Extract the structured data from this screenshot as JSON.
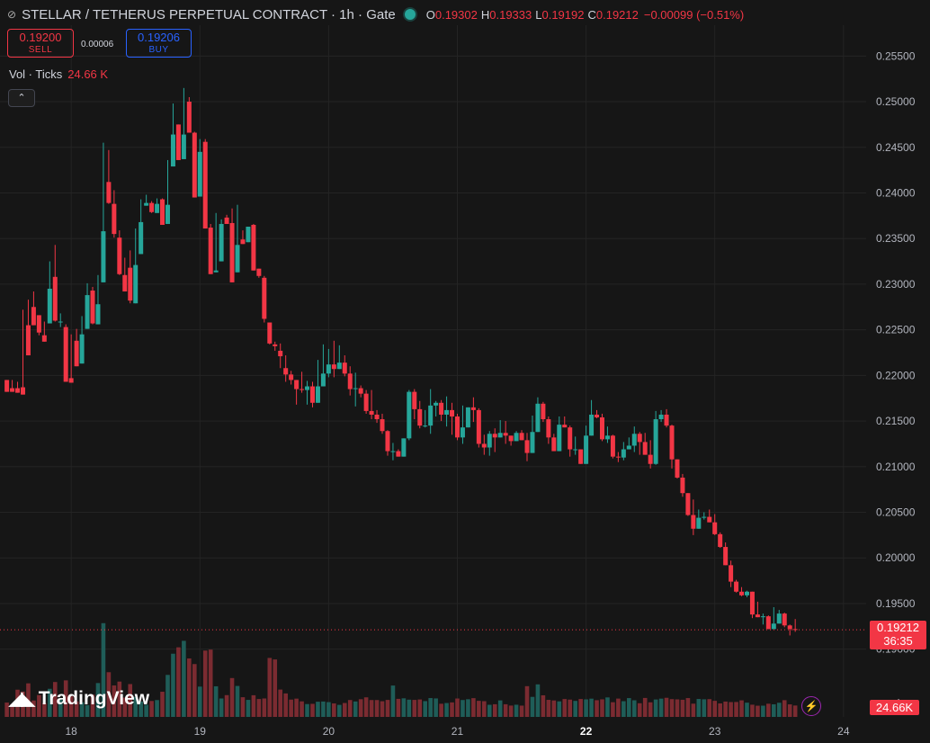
{
  "header": {
    "symbol": "STELLAR / TETHERUS PERPETUAL CONTRACT · 1h · Gate",
    "o_label": "O",
    "o_value": "0.19302",
    "h_label": "H",
    "h_value": "0.19333",
    "l_label": "L",
    "l_value": "0.19192",
    "c_label": "C",
    "c_value": "0.19212",
    "change": "−0.00099 (−0.51%)"
  },
  "trade": {
    "sell_price": "0.19200",
    "sell_label": "SELL",
    "spread": "0.00006",
    "buy_price": "0.19206",
    "buy_label": "BUY"
  },
  "volume_legend": {
    "label": "Vol · Ticks",
    "value": "24.66 K"
  },
  "collapse_icon": "chevron-up",
  "branding": {
    "logo_text": "TradingView"
  },
  "price_tag": {
    "price": "0.19212",
    "countdown": "36:35"
  },
  "volume_tag": "24.66K",
  "colors": {
    "up": "#26a69a",
    "down": "#f23645",
    "background": "#161616",
    "grid": "#242424"
  },
  "chart_data": {
    "type": "candlestick",
    "y_ticks": [
      "0.25500",
      "0.25000",
      "0.24500",
      "0.24000",
      "0.23500",
      "0.23000",
      "0.22500",
      "0.22000",
      "0.21500",
      "0.21000",
      "0.20500",
      "0.20000",
      "0.19500",
      "0.19000"
    ],
    "y_tick_values": [
      0.255,
      0.25,
      0.245,
      0.24,
      0.235,
      0.23,
      0.225,
      0.22,
      0.215,
      0.21,
      0.205,
      0.2,
      0.195,
      0.19
    ],
    "ylim": [
      0.1877,
      0.2572
    ],
    "x_ticks": [
      "18",
      "19",
      "20",
      "21",
      "22",
      "23",
      "24"
    ],
    "x_tick_hours": [
      12,
      36,
      60,
      84,
      108,
      132,
      156
    ],
    "x_tick_bold": [
      false,
      false,
      false,
      false,
      true,
      false,
      false
    ],
    "first_candle": "17th, 00:00",
    "last_price": 0.19212,
    "volume_ymax": 1.0,
    "candles": [
      [
        0.2195,
        0.2182,
        0.2192,
        0.2186,
        0.0939
      ],
      [
        0.2186,
        0.2182,
        0.2195,
        0.2184,
        0.082
      ],
      [
        0.2186,
        0.2181,
        0.2193,
        0.2187,
        0.178
      ],
      [
        0.2187,
        0.2179,
        0.2272,
        0.2255,
        0.1658
      ],
      [
        0.2255,
        0.2222,
        0.2283,
        0.2275,
        0.2195
      ],
      [
        0.2275,
        0.2255,
        0.2292,
        0.2266,
        0.1073
      ],
      [
        0.2266,
        0.2247,
        0.2263,
        0.2244,
        0.1429
      ],
      [
        0.2244,
        0.2237,
        0.2259,
        0.2257,
        0.0899
      ],
      [
        0.2257,
        0.2295,
        0.2325,
        0.2308,
        0.1838
      ],
      [
        0.2308,
        0.226,
        0.2343,
        0.2259,
        0.2283
      ],
      [
        0.2259,
        0.2259,
        0.2268,
        0.2253,
        0.113
      ],
      [
        0.2253,
        0.2193,
        0.2256,
        0.2197,
        0.2391
      ],
      [
        0.2197,
        0.2192,
        0.2245,
        0.2238,
        0.1349
      ],
      [
        0.2238,
        0.221,
        0.2251,
        0.2213,
        0.1014
      ],
      [
        0.2213,
        0.2245,
        0.2265,
        0.2251,
        0.0958
      ],
      [
        0.2251,
        0.2288,
        0.2301,
        0.2293,
        0.0771
      ],
      [
        0.2293,
        0.2257,
        0.2297,
        0.2256,
        0.1458
      ],
      [
        0.2256,
        0.2278,
        0.231,
        0.2302,
        0.2214
      ],
      [
        0.2302,
        0.2358,
        0.2455,
        0.2412,
        0.6131
      ],
      [
        0.2412,
        0.2389,
        0.2447,
        0.2388,
        0.2924
      ],
      [
        0.2388,
        0.2355,
        0.2403,
        0.2351,
        0.2057
      ],
      [
        0.2351,
        0.2311,
        0.2359,
        0.231,
        0.2311
      ],
      [
        0.231,
        0.2292,
        0.2329,
        0.2318,
        0.1263
      ],
      [
        0.2318,
        0.2282,
        0.2337,
        0.2279,
        0.2148
      ],
      [
        0.2279,
        0.2321,
        0.2361,
        0.2333,
        0.1304
      ],
      [
        0.2333,
        0.2368,
        0.2393,
        0.2386,
        0.1006
      ],
      [
        0.2386,
        0.2389,
        0.2398,
        0.2389,
        0.0798
      ],
      [
        0.2389,
        0.2379,
        0.2391,
        0.2378,
        0.1043
      ],
      [
        0.2378,
        0.2388,
        0.2394,
        0.2393,
        0.1102
      ],
      [
        0.2393,
        0.2365,
        0.2394,
        0.2366,
        0.1646
      ],
      [
        0.2366,
        0.2387,
        0.2436,
        0.2429,
        0.2747
      ],
      [
        0.2429,
        0.2464,
        0.2498,
        0.2475,
        0.4133
      ],
      [
        0.2475,
        0.2436,
        0.2475,
        0.2437,
        0.4551
      ],
      [
        0.2437,
        0.2464,
        0.2515,
        0.25,
        0.4976
      ],
      [
        0.25,
        0.2466,
        0.2505,
        0.2466,
        0.3824
      ],
      [
        0.2466,
        0.2395,
        0.2467,
        0.2396,
        0.3456
      ],
      [
        0.2396,
        0.2445,
        0.2459,
        0.2456,
        0.1982
      ],
      [
        0.2456,
        0.2361,
        0.2459,
        0.2362,
        0.4338
      ],
      [
        0.2362,
        0.2311,
        0.2366,
        0.2313,
        0.4402
      ],
      [
        0.2313,
        0.2315,
        0.2378,
        0.2325,
        0.2002
      ],
      [
        0.2325,
        0.2366,
        0.2371,
        0.2373,
        0.1207
      ],
      [
        0.2373,
        0.2366,
        0.2376,
        0.2367,
        0.1426
      ],
      [
        0.2367,
        0.2302,
        0.2383,
        0.2313,
        0.2541
      ],
      [
        0.2313,
        0.2343,
        0.2387,
        0.2349,
        0.2024
      ],
      [
        0.2349,
        0.2344,
        0.2359,
        0.2346,
        0.1288
      ],
      [
        0.2346,
        0.2363,
        0.2362,
        0.2365,
        0.1114
      ],
      [
        0.2365,
        0.2315,
        0.2366,
        0.2317,
        0.1417
      ],
      [
        0.2317,
        0.2309,
        0.2313,
        0.2307,
        0.1172
      ],
      [
        0.2307,
        0.2262,
        0.2309,
        0.2258,
        0.1207
      ],
      [
        0.2258,
        0.2235,
        0.2258,
        0.2234,
        0.3857
      ],
      [
        0.2234,
        0.2232,
        0.2237,
        0.2227,
        0.3759
      ],
      [
        0.2227,
        0.2221,
        0.2235,
        0.2208,
        0.1788
      ],
      [
        0.2208,
        0.2201,
        0.2222,
        0.2193,
        0.1535
      ],
      [
        0.2201,
        0.2195,
        0.2205,
        0.219,
        0.1133
      ],
      [
        0.2195,
        0.2185,
        0.219,
        0.2168,
        0.1196
      ],
      [
        0.2185,
        0.2184,
        0.2204,
        0.2181,
        0.1018
      ],
      [
        0.2184,
        0.2188,
        0.2194,
        0.2168,
        0.0841
      ],
      [
        0.2188,
        0.217,
        0.2193,
        0.2165,
        0.0855
      ],
      [
        0.217,
        0.2188,
        0.2217,
        0.2181,
        0.0994
      ],
      [
        0.2188,
        0.2202,
        0.2234,
        0.2193,
        0.1008
      ],
      [
        0.2202,
        0.2212,
        0.2229,
        0.2198,
        0.0967
      ],
      [
        0.2212,
        0.2207,
        0.2238,
        0.2198,
        0.0884
      ],
      [
        0.2207,
        0.2214,
        0.2233,
        0.2208,
        0.0787
      ],
      [
        0.2214,
        0.2202,
        0.2222,
        0.2199,
        0.091
      ],
      [
        0.2202,
        0.2185,
        0.221,
        0.2178,
        0.1105
      ],
      [
        0.2185,
        0.2186,
        0.2203,
        0.2166,
        0.1011
      ],
      [
        0.2186,
        0.218,
        0.2189,
        0.2176,
        0.1158
      ],
      [
        0.218,
        0.2161,
        0.2184,
        0.2158,
        0.1281
      ],
      [
        0.2161,
        0.2157,
        0.2184,
        0.2152,
        0.1103
      ],
      [
        0.2157,
        0.2152,
        0.2162,
        0.2148,
        0.1103
      ],
      [
        0.2152,
        0.2139,
        0.2158,
        0.2136,
        0.1026
      ],
      [
        0.2139,
        0.2117,
        0.214,
        0.2112,
        0.1112
      ],
      [
        0.2117,
        0.2117,
        0.2126,
        0.2107,
        0.2052
      ],
      [
        0.2117,
        0.2111,
        0.2119,
        0.2111,
        0.1181
      ],
      [
        0.2111,
        0.2131,
        0.2131,
        0.2122,
        0.1217
      ],
      [
        0.2131,
        0.2182,
        0.2184,
        0.2129,
        0.1128
      ],
      [
        0.2182,
        0.2163,
        0.2185,
        0.2152,
        0.1113
      ],
      [
        0.2163,
        0.2145,
        0.2172,
        0.2142,
        0.1142
      ],
      [
        0.2145,
        0.2145,
        0.2162,
        0.2143,
        0.1033
      ],
      [
        0.2145,
        0.2167,
        0.2185,
        0.2136,
        0.1233
      ],
      [
        0.2167,
        0.217,
        0.2172,
        0.2155,
        0.1209
      ],
      [
        0.217,
        0.2157,
        0.2173,
        0.215,
        0.0861
      ],
      [
        0.2157,
        0.2162,
        0.2177,
        0.2144,
        0.0908
      ],
      [
        0.2162,
        0.2155,
        0.217,
        0.2135,
        0.0949
      ],
      [
        0.2155,
        0.2132,
        0.2158,
        0.2129,
        0.1205
      ],
      [
        0.2132,
        0.2143,
        0.2167,
        0.2125,
        0.1106
      ],
      [
        0.2143,
        0.2165,
        0.2163,
        0.2164,
        0.1157
      ],
      [
        0.2165,
        0.2162,
        0.2176,
        0.2149,
        0.1227
      ],
      [
        0.2162,
        0.2125,
        0.2164,
        0.2121,
        0.1053
      ],
      [
        0.2125,
        0.2121,
        0.2135,
        0.2113,
        0.103
      ],
      [
        0.2121,
        0.2136,
        0.2139,
        0.2112,
        0.0793
      ],
      [
        0.2136,
        0.2132,
        0.2142,
        0.2116,
        0.0829
      ],
      [
        0.2132,
        0.2137,
        0.2151,
        0.2138,
        0.1081
      ],
      [
        0.2137,
        0.2134,
        0.215,
        0.2125,
        0.0828
      ],
      [
        0.2134,
        0.2128,
        0.2132,
        0.2123,
        0.0741
      ],
      [
        0.2128,
        0.2137,
        0.2139,
        0.2135,
        0.0797
      ],
      [
        0.2137,
        0.2129,
        0.214,
        0.2131,
        0.0738
      ],
      [
        0.2129,
        0.2115,
        0.2137,
        0.2106,
        0.2011
      ],
      [
        0.2115,
        0.2138,
        0.2156,
        0.2125,
        0.1311
      ],
      [
        0.2138,
        0.2169,
        0.2176,
        0.2166,
        0.2128
      ],
      [
        0.2169,
        0.2152,
        0.2171,
        0.2149,
        0.1413
      ],
      [
        0.2152,
        0.2132,
        0.2155,
        0.2125,
        0.1116
      ],
      [
        0.2132,
        0.2117,
        0.2136,
        0.2117,
        0.1076
      ],
      [
        0.2117,
        0.2146,
        0.2155,
        0.2135,
        0.1016
      ],
      [
        0.2146,
        0.2143,
        0.2155,
        0.2143,
        0.1169
      ],
      [
        0.2143,
        0.2119,
        0.2145,
        0.2111,
        0.1133
      ],
      [
        0.2119,
        0.2119,
        0.2133,
        0.2113,
        0.1048
      ],
      [
        0.2119,
        0.2103,
        0.2118,
        0.2105,
        0.1172
      ],
      [
        0.2103,
        0.2134,
        0.2145,
        0.2126,
        0.1147
      ],
      [
        0.2134,
        0.2157,
        0.2173,
        0.2148,
        0.1195
      ],
      [
        0.2157,
        0.2154,
        0.2162,
        0.2153,
        0.1093
      ],
      [
        0.2154,
        0.213,
        0.2158,
        0.2128,
        0.115
      ],
      [
        0.213,
        0.2134,
        0.2144,
        0.2126,
        0.1276
      ],
      [
        0.2134,
        0.2111,
        0.2135,
        0.2109,
        0.0961
      ],
      [
        0.2111,
        0.211,
        0.2116,
        0.2105,
        0.1199
      ],
      [
        0.211,
        0.2119,
        0.2127,
        0.2107,
        0.1028
      ],
      [
        0.2119,
        0.2123,
        0.2132,
        0.2121,
        0.1231
      ],
      [
        0.2123,
        0.2136,
        0.2144,
        0.2116,
        0.1088
      ],
      [
        0.2136,
        0.2127,
        0.2138,
        0.2113,
        0.0895
      ],
      [
        0.2127,
        0.2113,
        0.2137,
        0.2113,
        0.124
      ],
      [
        0.2113,
        0.2103,
        0.2129,
        0.2098,
        0.0956
      ],
      [
        0.2103,
        0.2152,
        0.2161,
        0.2102,
        0.1139
      ],
      [
        0.2152,
        0.2157,
        0.2162,
        0.2149,
        0.1196
      ],
      [
        0.2157,
        0.2145,
        0.2163,
        0.2143,
        0.1251
      ],
      [
        0.2145,
        0.2108,
        0.2146,
        0.2098,
        0.1164
      ],
      [
        0.2108,
        0.2088,
        0.2108,
        0.2087,
        0.1148
      ],
      [
        0.2088,
        0.2071,
        0.2092,
        0.2067,
        0.1122
      ],
      [
        0.2071,
        0.2047,
        0.207,
        0.2046,
        0.1233
      ],
      [
        0.2047,
        0.2032,
        0.2064,
        0.2025,
        0.0867
      ],
      [
        0.2032,
        0.2044,
        0.2053,
        0.2043,
        0.1175
      ],
      [
        0.2044,
        0.2045,
        0.205,
        0.2042,
        0.1152
      ],
      [
        0.2045,
        0.2039,
        0.2053,
        0.2039,
        0.1164
      ],
      [
        0.2039,
        0.2026,
        0.2048,
        0.2025,
        0.1052
      ],
      [
        0.2026,
        0.2012,
        0.2028,
        0.2011,
        0.0884
      ],
      [
        0.2012,
        0.1992,
        0.2017,
        0.1992,
        0.1004
      ],
      [
        0.1992,
        0.1974,
        0.1997,
        0.1968,
        0.097
      ],
      [
        0.1974,
        0.1963,
        0.1976,
        0.1962,
        0.0976
      ],
      [
        0.1963,
        0.1959,
        0.1968,
        0.1958,
        0.1084
      ],
      [
        0.1959,
        0.1963,
        0.1964,
        0.1957,
        0.0932
      ],
      [
        0.1963,
        0.1938,
        0.1963,
        0.1934,
        0.0799
      ],
      [
        0.1938,
        0.1935,
        0.1952,
        0.1936,
        0.0733
      ],
      [
        0.1935,
        0.1936,
        0.1939,
        0.1927,
        0.0735
      ],
      [
        0.1936,
        0.1922,
        0.1937,
        0.1924,
        0.0863
      ],
      [
        0.1922,
        0.1928,
        0.1946,
        0.1928,
        0.0825
      ],
      [
        0.1928,
        0.1939,
        0.1943,
        0.1935,
        0.0925
      ],
      [
        0.1939,
        0.1926,
        0.194,
        0.1924,
        0.1095
      ],
      [
        0.1926,
        0.1922,
        0.1927,
        0.1915,
        0.0822
      ],
      [
        0.1922,
        0.1921,
        0.1933,
        0.1919,
        0.0746
      ]
    ]
  }
}
